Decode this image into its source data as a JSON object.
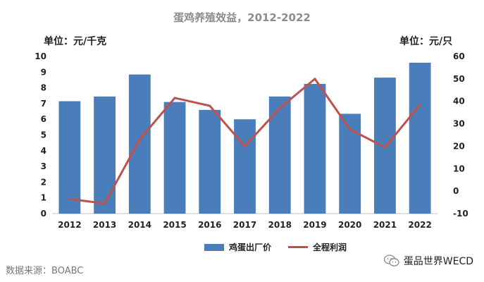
{
  "title": "蛋鸡养殖效益，2012-2022",
  "left_unit": "单位：元/千克",
  "right_unit": "单位：元/只",
  "legend": {
    "bar_label": "鸡蛋出厂价",
    "line_label": "全程利润"
  },
  "source": "数据来源：BOABC",
  "brand": "蛋品世界WECD",
  "colors": {
    "bar": "#4a7ebb",
    "line": "#c0504d",
    "axis": "#bfbfbf",
    "text": "#222222"
  },
  "chart_data": {
    "type": "bar",
    "categories": [
      "2012",
      "2013",
      "2014",
      "2015",
      "2016",
      "2017",
      "2018",
      "2019",
      "2020",
      "2021",
      "2022"
    ],
    "series": [
      {
        "name": "鸡蛋出厂价",
        "type": "bar",
        "axis": "left",
        "values": [
          7.15,
          7.45,
          8.85,
          7.1,
          6.6,
          6.0,
          7.45,
          8.25,
          6.35,
          8.65,
          9.6
        ]
      },
      {
        "name": "全程利润",
        "type": "line",
        "axis": "right",
        "values": [
          -3.5,
          -5.5,
          23.0,
          41.5,
          38.0,
          20.0,
          37.0,
          50.0,
          27.5,
          19.5,
          38.5
        ]
      }
    ],
    "y_left": {
      "ylim": [
        0,
        10
      ],
      "ticks": [
        0,
        1,
        2,
        3,
        4,
        5,
        6,
        7,
        8,
        9,
        10
      ]
    },
    "y_right": {
      "ylim": [
        -10,
        60
      ],
      "ticks": [
        -10,
        0,
        10,
        20,
        30,
        40,
        50,
        60
      ]
    },
    "grid": false,
    "legend_position": "bottom"
  }
}
